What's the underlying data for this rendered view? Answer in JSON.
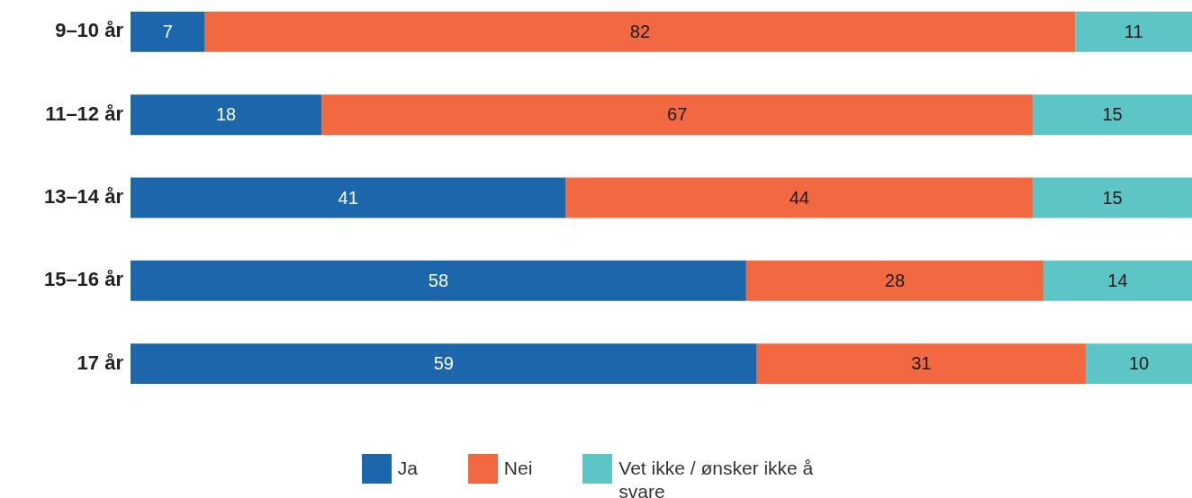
{
  "chart_data": {
    "type": "bar",
    "orientation": "horizontal",
    "stacked": true,
    "categories": [
      "9–10 år",
      "11–12 år",
      "13–14 år",
      "15–16 år",
      "17 år"
    ],
    "series": [
      {
        "name": "Ja",
        "color": "#1c66ab",
        "values": [
          7,
          18,
          41,
          58,
          59
        ]
      },
      {
        "name": "Nei",
        "color": "#f26841",
        "values": [
          82,
          67,
          44,
          28,
          31
        ]
      },
      {
        "name": "Vet ikke / ønsker ikke å svare",
        "color": "#5dc5c5",
        "values": [
          11,
          15,
          15,
          14,
          10
        ]
      }
    ],
    "data_labels": true,
    "legend": "bottom",
    "tick_labels": "y"
  }
}
